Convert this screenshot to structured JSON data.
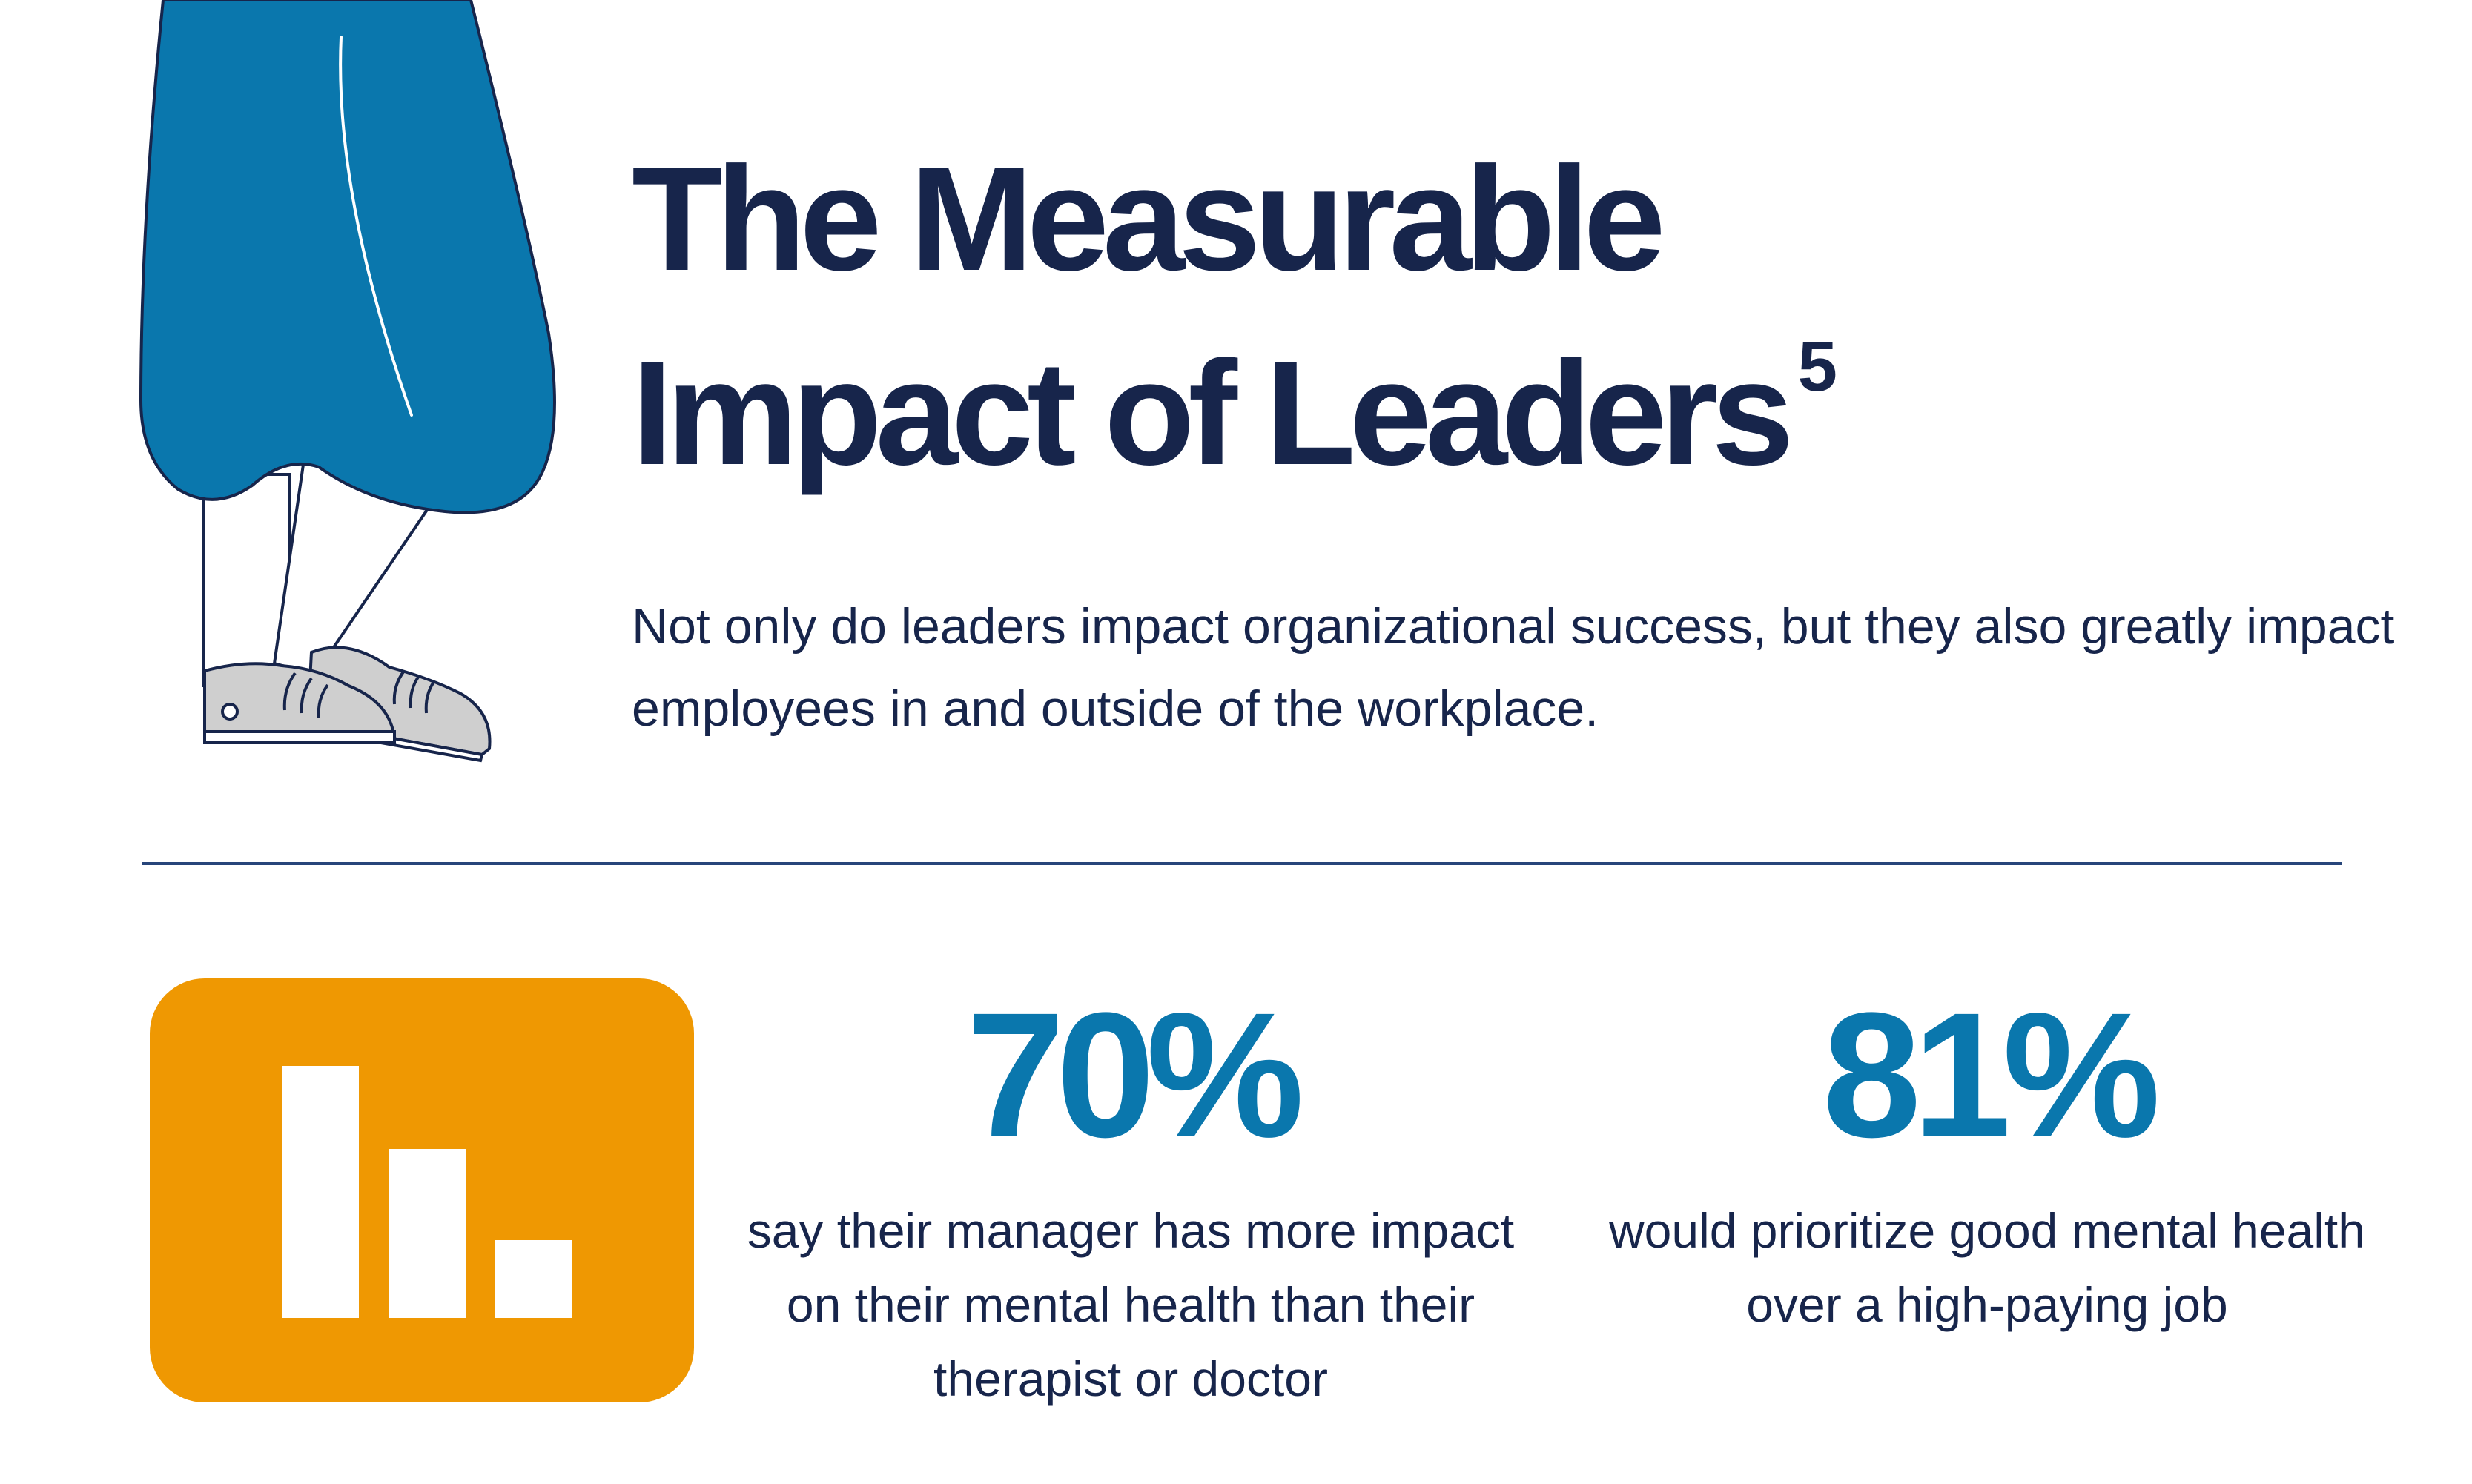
{
  "header": {
    "title_line1": "The Measurable",
    "title_line2": "Impact of Leaders",
    "title_footnote": "5",
    "subtitle": "Not only do leaders impact organizational success, but they also greatly impact employees in and outside of the workplace."
  },
  "illustration": {
    "description_icon": "person-standing-legs-icon",
    "skirt_color": "#0a77ad",
    "shoe_color": "#cfcfcf"
  },
  "chart_icon": {
    "icon": "bar-chart-icon",
    "tile_color": "#ef9802",
    "bar_levels": [
      1.0,
      0.67,
      0.31
    ]
  },
  "stats": [
    {
      "value": "70%",
      "description": "say their manager has more impact on their mental health than their therapist or doctor"
    },
    {
      "value": "81%",
      "description": "would prioritize good mental health over a high-paying job"
    }
  ],
  "colors": {
    "navy": "#17254b",
    "accent_blue": "#0a77ad",
    "orange": "#ef9802",
    "divider": "#27457a"
  }
}
